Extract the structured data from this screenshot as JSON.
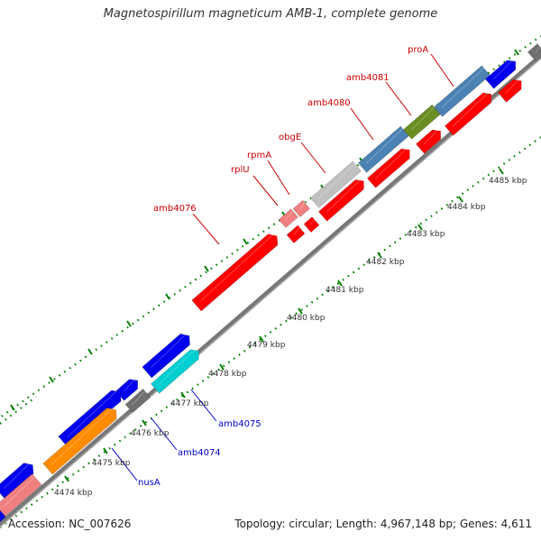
{
  "title": "Magnetospirillum magneticum AMB-1, complete genome",
  "accession": "Accession: NC_007626",
  "topology": "Topology: circular; Length: 4,967,148 bp; Genes: 4,611",
  "colors": {
    "red": "#ff0000",
    "blue": "#0000ee",
    "steelblue": "#4b82b4",
    "olive": "#6b8e23",
    "silver": "#c0c0c0",
    "pink": "#f08080",
    "orange": "#ff8c00",
    "cyan": "#00ced1",
    "gray": "#707070",
    "tick": "#008000",
    "label_red": "#cc0000",
    "label_blue": "#0000cc"
  },
  "scale_labels": [
    "4474 kbp",
    "4475 kbp",
    "4476 kbp",
    "4477 kbp",
    "4478 kbp",
    "4479 kbp",
    "4480 kbp",
    "4481 kbp",
    "4482 kbp",
    "4483 kbp",
    "4484 kbp",
    "4485 kbp"
  ],
  "gene_labels": {
    "proA": "proA",
    "amb4081": "amb4081",
    "amb4080": "amb4080",
    "obgE": "obgE",
    "rpmA": "rpmA",
    "rplU": "rplU",
    "amb4076": "amb4076",
    "amb4075": "amb4075",
    "amb4074": "amb4074",
    "nusA": "nusA"
  },
  "genes": [
    {
      "name": "segment-red-1",
      "color": "red"
    },
    {
      "name": "segment-red-2",
      "color": "red"
    },
    {
      "name": "segment-red-3",
      "color": "red"
    },
    {
      "name": "segment-red-4",
      "color": "red"
    },
    {
      "name": "segment-red-5",
      "color": "red"
    },
    {
      "name": "segment-red-6",
      "color": "red"
    },
    {
      "name": "segment-red-7",
      "color": "red"
    },
    {
      "name": "segment-blue-1",
      "color": "blue"
    },
    {
      "name": "segment-blue-2",
      "color": "blue"
    },
    {
      "name": "segment-blue-3",
      "color": "blue"
    },
    {
      "name": "segment-blue-4",
      "color": "blue"
    },
    {
      "name": "segment-blue-5",
      "color": "blue"
    },
    {
      "name": "segment-blue-6",
      "color": "blue"
    },
    {
      "name": "segment-steelblue-1",
      "color": "steelblue"
    },
    {
      "name": "segment-steelblue-2",
      "color": "steelblue"
    },
    {
      "name": "segment-olive",
      "color": "olive"
    },
    {
      "name": "segment-silver",
      "color": "silver"
    },
    {
      "name": "segment-pink-1",
      "color": "pink"
    },
    {
      "name": "segment-pink-2",
      "color": "pink"
    },
    {
      "name": "segment-orange",
      "color": "orange"
    },
    {
      "name": "segment-cyan",
      "color": "cyan"
    },
    {
      "name": "segment-gray-1",
      "color": "gray"
    },
    {
      "name": "segment-gray-2",
      "color": "gray"
    }
  ]
}
